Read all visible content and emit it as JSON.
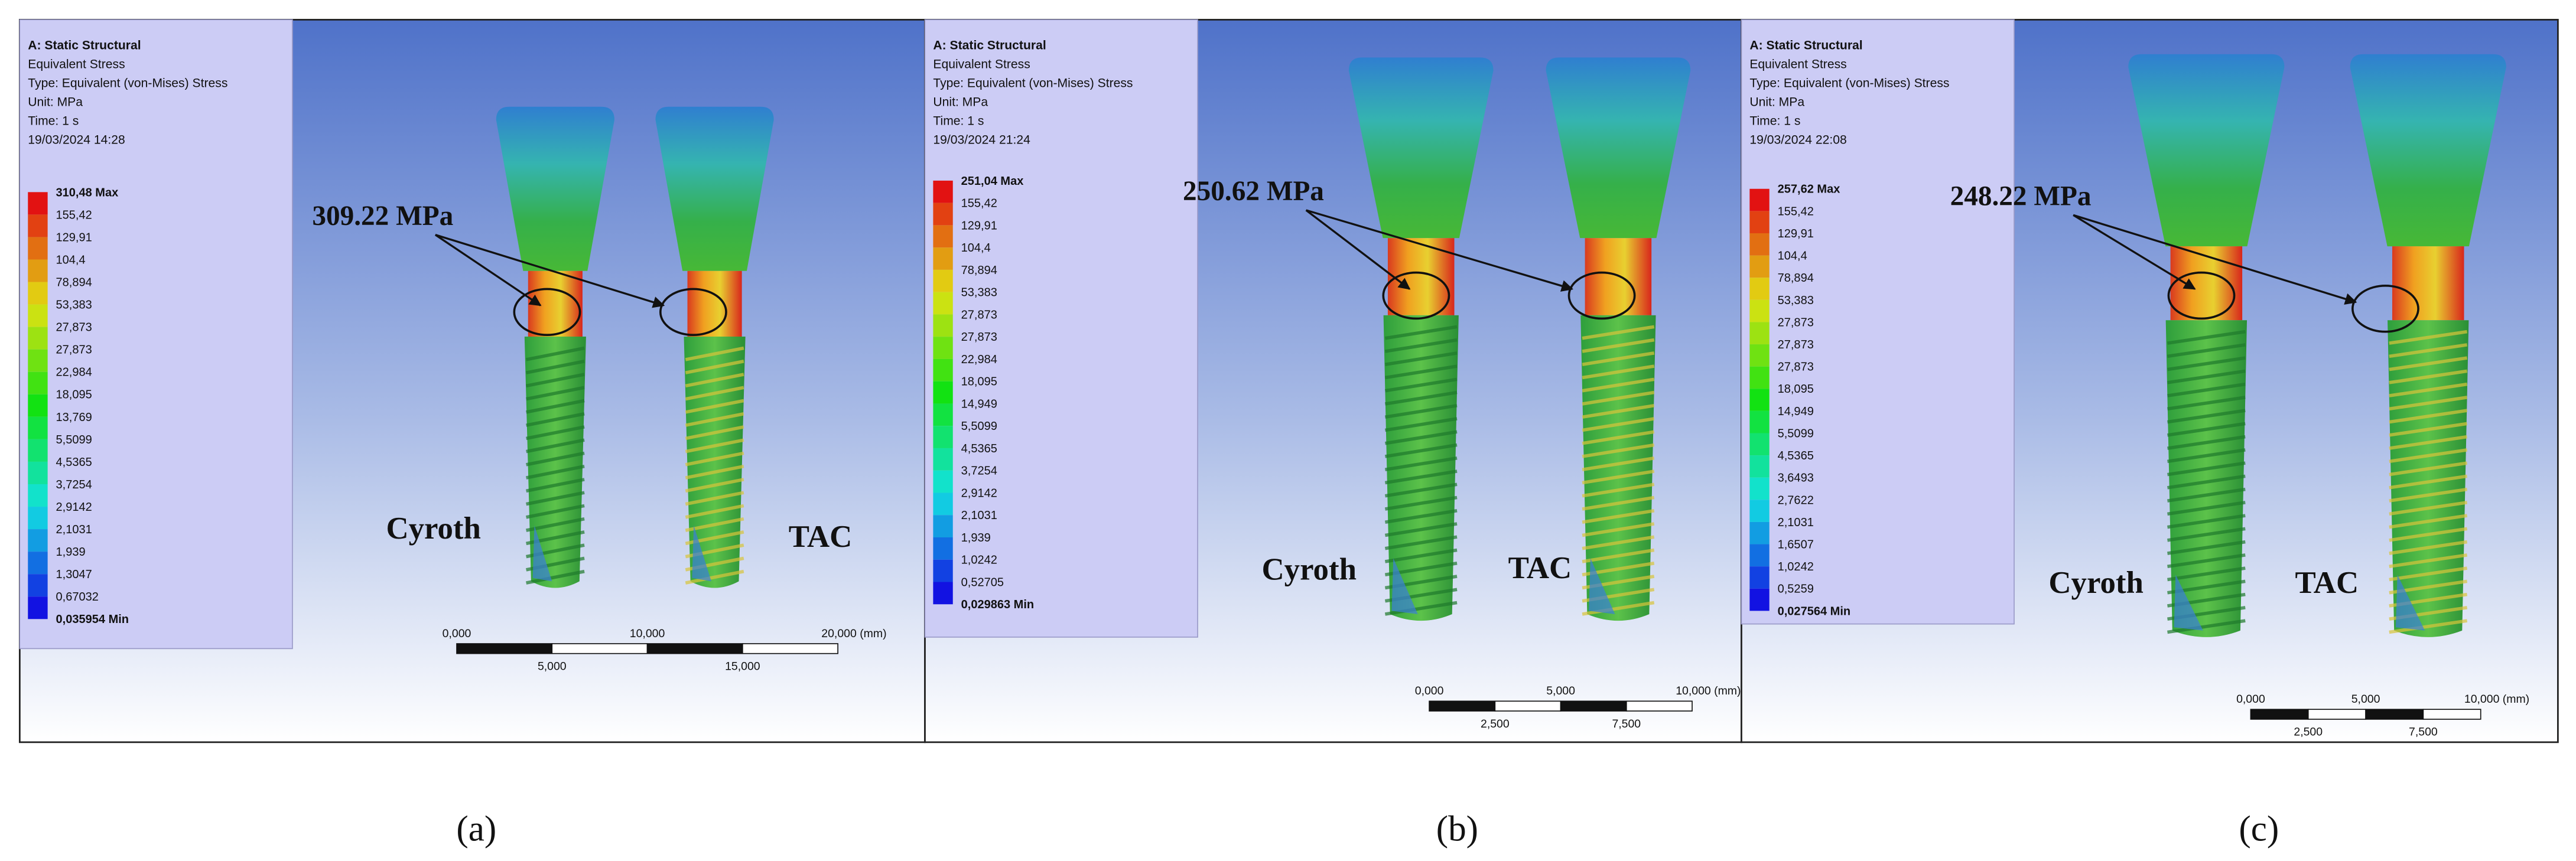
{
  "panels": [
    {
      "header": [
        "A: Static Structural",
        "Equivalent Stress",
        "Type: Equivalent (von-Mises) Stress",
        "Unit: MPa",
        "Time: 1 s",
        "19/03/2024 14:28"
      ],
      "legend": [
        "310,48 Max",
        "155,42",
        "129,91",
        "104,4",
        "78,894",
        "53,383",
        "27,873",
        "27,873",
        "22,984",
        "18,095",
        "13,769",
        "5,5099",
        "4,5365",
        "3,7254",
        "2,9142",
        "2,1031",
        "1,939",
        "1,3047",
        "0,67032",
        "0,035954 Min"
      ],
      "annotation": "309.22 MPa",
      "implants": [
        "Cyroth",
        "TAC"
      ],
      "scale_top": [
        "0,000",
        "10,000",
        "20,000 (mm)"
      ],
      "scale_bottom": [
        "5,000",
        "15,000"
      ],
      "caption": "(a)"
    },
    {
      "header": [
        "A: Static Structural",
        "Equivalent Stress",
        "Type: Equivalent (von-Mises) Stress",
        "Unit: MPa",
        "Time: 1 s",
        "19/03/2024 21:24"
      ],
      "legend": [
        "251,04 Max",
        "155,42",
        "129,91",
        "104,4",
        "78,894",
        "53,383",
        "27,873",
        "27,873",
        "22,984",
        "18,095",
        "14,949",
        "5,5099",
        "4,5365",
        "3,7254",
        "2,9142",
        "2,1031",
        "1,939",
        "1,0242",
        "0,52705",
        "0,029863 Min"
      ],
      "annotation": "250.62 MPa",
      "implants": [
        "Cyroth",
        "TAC"
      ],
      "scale_top": [
        "0,000",
        "5,000",
        "10,000 (mm)"
      ],
      "scale_bottom": [
        "2,500",
        "7,500"
      ],
      "caption": "(b)"
    },
    {
      "header": [
        "A: Static Structural",
        "Equivalent Stress",
        "Type: Equivalent (von-Mises) Stress",
        "Unit: MPa",
        "Time: 1 s",
        "19/03/2024 22:08"
      ],
      "legend": [
        "257,62 Max",
        "155,42",
        "129,91",
        "104,4",
        "78,894",
        "53,383",
        "27,873",
        "27,873",
        "27,873",
        "18,095",
        "14,949",
        "5,5099",
        "4,5365",
        "3,6493",
        "2,7622",
        "2,1031",
        "1,6507",
        "1,0242",
        "0,5259",
        "0,027564 Min"
      ],
      "annotation": "248.22 MPa",
      "implants": [
        "Cyroth",
        "TAC"
      ],
      "scale_top": [
        "0,000",
        "5,000",
        "10,000 (mm)"
      ],
      "scale_bottom": [
        "2,500",
        "7,500"
      ],
      "caption": "(c)"
    }
  ]
}
